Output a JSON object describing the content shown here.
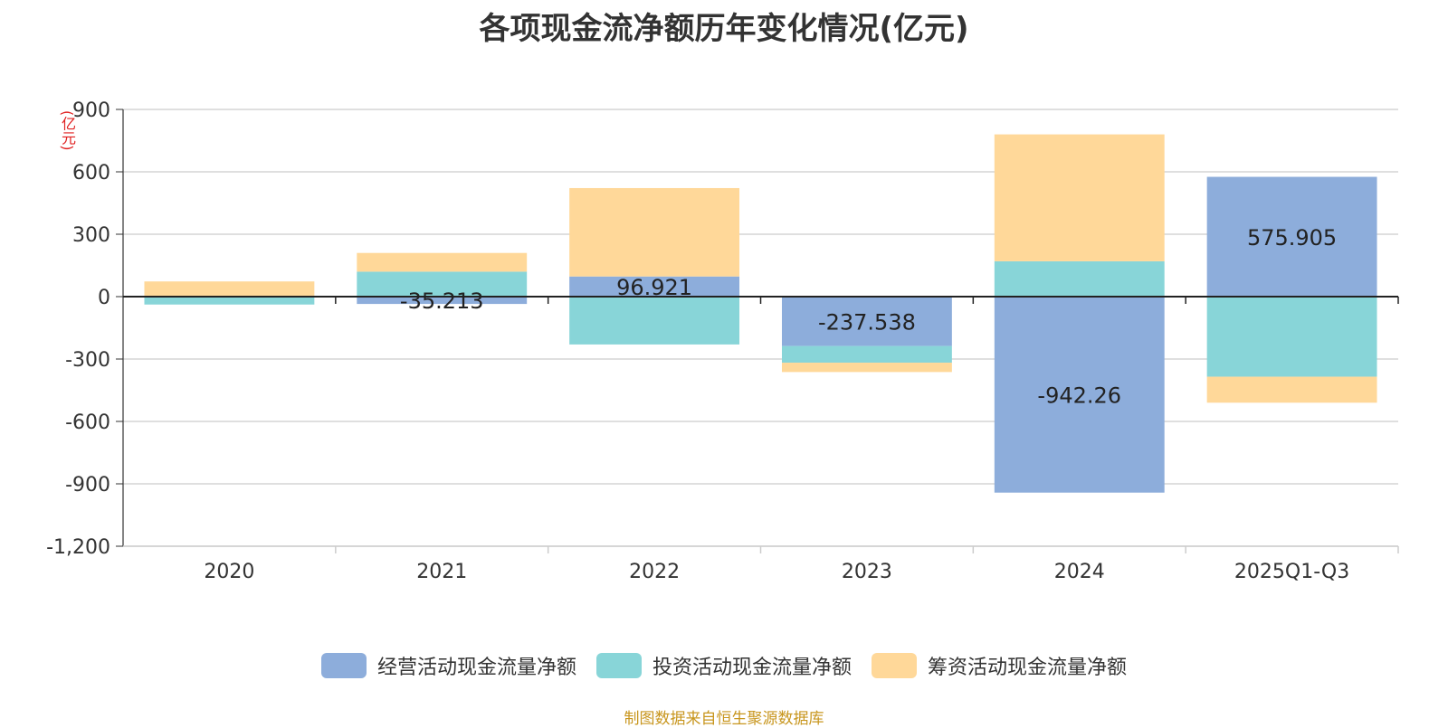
{
  "title": "各项现金流净额历年变化情况(亿元)",
  "source": "制图数据来自恒生聚源数据库",
  "colors": {
    "operating": "#8DADDB",
    "investing": "#88D5D8",
    "financing": "#FFD899",
    "ylabel": "#E02020",
    "source": "#C8961E"
  },
  "chart_data": {
    "type": "bar",
    "stacked": true,
    "title": "各项现金流净额历年变化情况(亿元)",
    "ylabel": "(亿元)",
    "categories": [
      "2020",
      "2021",
      "2022",
      "2023",
      "2024",
      "2025Q1-Q3"
    ],
    "ylim": [
      -1200,
      900
    ],
    "yticks": [
      900,
      600,
      300,
      0,
      -300,
      -600,
      -900,
      -1200
    ],
    "ytick_labels": [
      "900",
      "600",
      "300",
      "0",
      "-300",
      "-600",
      "-900",
      "-1,200"
    ],
    "grid": true,
    "legend_position": "bottom",
    "series": [
      {
        "name": "经营活动现金流量净额",
        "values": [
          -3.0,
          -35.213,
          96.921,
          -237.538,
          -942.26,
          575.905
        ],
        "data_labels": [
          "",
          "-35.213",
          "96.921",
          "-237.538",
          "-942.26",
          "575.905"
        ]
      },
      {
        "name": "投资活动现金流量净额",
        "values": [
          -35,
          120,
          -230,
          -80,
          170,
          -385
        ]
      },
      {
        "name": "筹资活动现金流量净额",
        "values": [
          73,
          90,
          425,
          -45,
          610,
          -125
        ]
      }
    ]
  }
}
